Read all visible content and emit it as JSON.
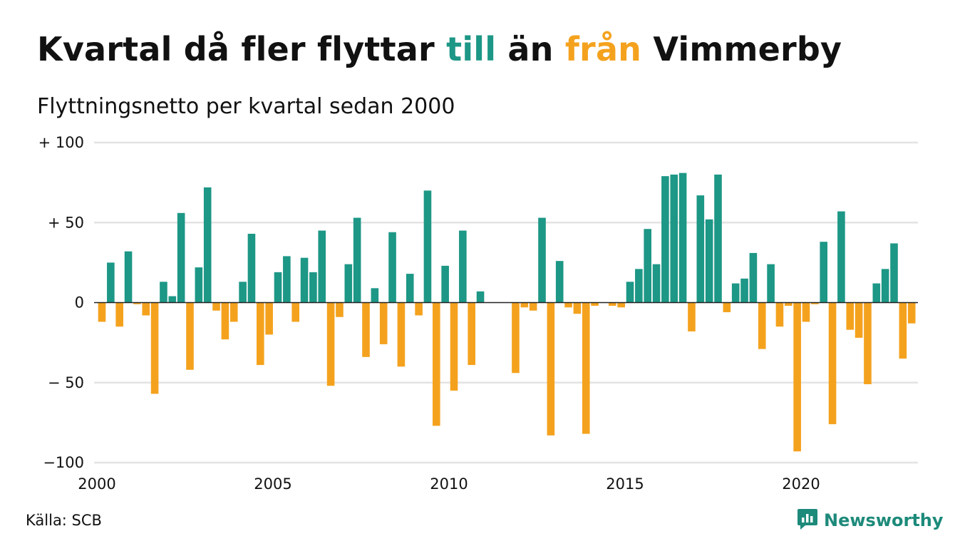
{
  "title": {
    "part1": "Kvartal då fler flyttar ",
    "till": "till",
    "part2": " än ",
    "fran": "från",
    "part3": " Vimmerby"
  },
  "subtitle": "Flyttningsnetto per kvartal sedan 2000",
  "source": "Källa: SCB",
  "brand": {
    "name": "Newsworthy",
    "icon": "newsworthy-logo-icon"
  },
  "colors": {
    "positive": "#1d9786",
    "negative": "#f4a21e",
    "grid": "#e3e3e3",
    "zero_line": "#222222",
    "brand": "#1d8a7a"
  },
  "chart_data": {
    "type": "bar",
    "title": "Kvartal då fler flyttar till än från Vimmerby",
    "subtitle": "Flyttningsnetto per kvartal sedan 2000",
    "ylim": [
      -100,
      100
    ],
    "y_ticks": [
      100,
      50,
      0,
      -50,
      -100
    ],
    "y_tick_labels": [
      "+ 100",
      "+  50",
      "0",
      "− 50",
      "−100"
    ],
    "x_tick_labels": [
      "2000",
      "2005",
      "2010",
      "2015",
      "2020"
    ],
    "x_tick_years": [
      2000,
      2005,
      2010,
      2015,
      2020
    ],
    "grid": true,
    "legend": "none",
    "start_year": 2000,
    "values": [
      -12,
      25,
      -15,
      32,
      -1,
      -8,
      -57,
      13,
      4,
      56,
      -42,
      22,
      72,
      -5,
      -23,
      -12,
      13,
      43,
      -39,
      -20,
      19,
      29,
      -12,
      28,
      19,
      45,
      -52,
      -9,
      24,
      53,
      -34,
      9,
      -26,
      44,
      -40,
      18,
      -8,
      70,
      -77,
      23,
      -55,
      45,
      -39,
      7,
      0,
      0,
      0,
      -44,
      -3,
      -5,
      53,
      -83,
      26,
      -3,
      -7,
      -82,
      -2,
      0,
      -2,
      -3,
      13,
      21,
      46,
      24,
      79,
      80,
      81,
      -18,
      67,
      52,
      80,
      -6,
      12,
      15,
      31,
      -29,
      24,
      -15,
      -2,
      -93,
      -12,
      -1,
      38,
      -76,
      57,
      -17,
      -22,
      -51,
      12,
      21,
      37,
      -35,
      -13
    ]
  }
}
